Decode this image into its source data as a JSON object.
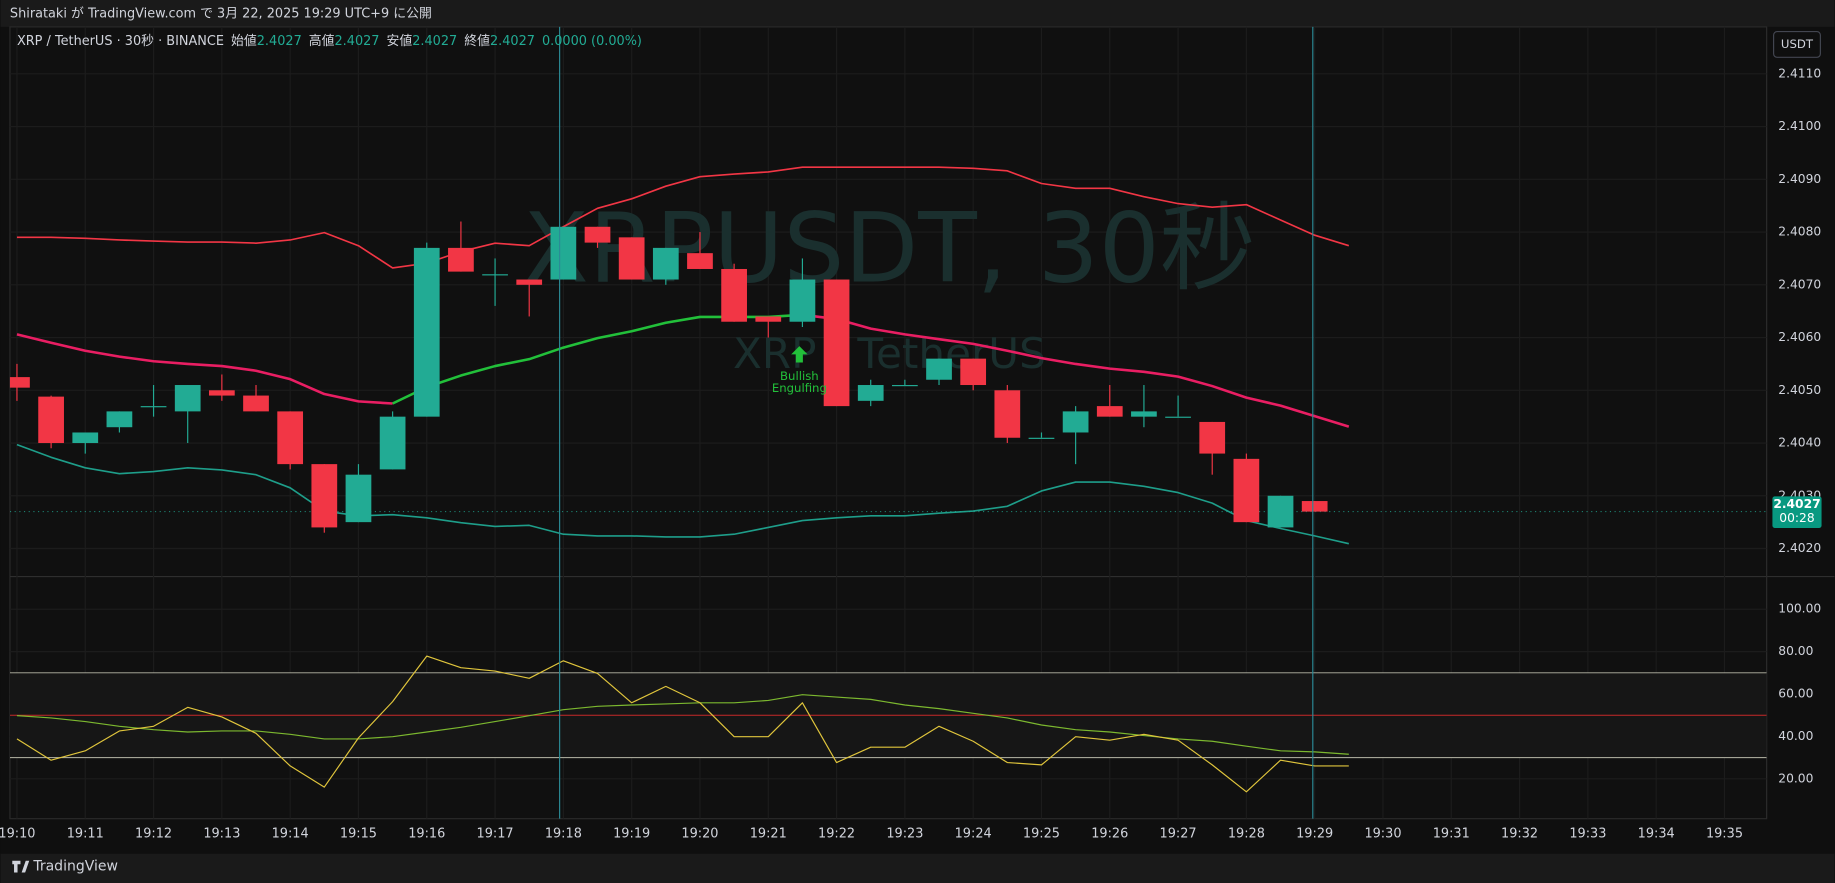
{
  "header": {
    "publish_note": "Shirataki が TradingView.com で 3月 22, 2025 19:29 UTC+9 に公開"
  },
  "footer": {
    "brand": "TradingView"
  },
  "chart_data": [
    {
      "type": "candlestick",
      "title": "XRP / TetherUS · 30秒 · BINANCE",
      "legend_fields": [
        {
          "label": "始値",
          "value": 2.4027
        },
        {
          "label": "高値",
          "value": 2.4027
        },
        {
          "label": "安値",
          "value": 2.4027
        },
        {
          "label": "終値",
          "value": 2.4027
        }
      ],
      "change": "0.0000 (0.00%)",
      "watermark": "XRPUSDT, 30秒",
      "watermark_sub": "XRP / TetherUS",
      "currency": "USDT",
      "annotation": [
        "Bullish",
        "Engulfing"
      ],
      "annotation_color": "#22c03a",
      "last_price": 2.4027,
      "countdown": "00:28",
      "categories": [
        "19:10",
        null,
        "19:11",
        null,
        "19:12",
        null,
        "19:13",
        null,
        "19:14",
        null,
        "19:15",
        null,
        "19:16",
        null,
        "19:17",
        null,
        "19:18",
        null,
        "19:19",
        null,
        "19:20",
        null,
        "19:21",
        null,
        "19:22",
        null,
        "19:23",
        null,
        "19:24",
        null,
        "19:25",
        null,
        "19:26",
        null,
        "19:27",
        null,
        "19:28",
        null,
        "19:29",
        null
      ],
      "time_axis_extra": [
        "19:30",
        "19:31",
        "19:32",
        "19:33",
        "19:34",
        "19:35"
      ],
      "open": [
        2.40525,
        2.40488,
        2.404,
        2.4043,
        2.4047,
        2.4046,
        2.405,
        2.4049,
        2.4046,
        2.4036,
        2.4025,
        2.4035,
        2.4045,
        2.4077,
        2.4072,
        2.4071,
        2.4071,
        2.4081,
        2.4079,
        2.4071,
        2.4076,
        2.4073,
        2.4064,
        2.4063,
        2.4071,
        2.4048,
        2.4051,
        2.4052,
        2.4056,
        2.405,
        2.4041,
        2.4042,
        2.4047,
        2.4045,
        2.4045,
        2.4044,
        2.4037,
        2.4024,
        2.4029,
        null
      ],
      "high": [
        2.4055,
        2.4049,
        2.4042,
        2.4046,
        2.4051,
        2.4051,
        2.4053,
        2.4051,
        2.4046,
        2.4036,
        2.4036,
        2.4046,
        2.4078,
        2.4082,
        2.4075,
        2.4071,
        2.4081,
        2.4081,
        2.4079,
        2.4077,
        2.408,
        2.4074,
        2.4064,
        2.4075,
        2.4071,
        2.4052,
        2.4052,
        2.4056,
        2.4056,
        2.4051,
        2.4042,
        2.4047,
        2.4051,
        2.4051,
        2.4049,
        2.4044,
        2.4038,
        2.403,
        2.4029,
        null
      ],
      "low": [
        2.4048,
        2.4039,
        2.4038,
        2.4042,
        2.4045,
        2.404,
        2.4048,
        2.4046,
        2.4035,
        2.4023,
        2.4025,
        2.4035,
        2.4045,
        2.40725,
        2.4066,
        2.4064,
        2.4071,
        2.4077,
        2.4071,
        2.407,
        2.4073,
        2.4063,
        2.406,
        2.4062,
        2.4047,
        2.4047,
        2.4051,
        2.4051,
        2.405,
        2.404,
        2.4041,
        2.4036,
        2.4045,
        2.4043,
        2.4045,
        2.4034,
        2.4025,
        2.4024,
        2.4027,
        null
      ],
      "close": [
        2.40505,
        2.404,
        2.4042,
        2.4046,
        2.4047,
        2.4051,
        2.4049,
        2.4046,
        2.4036,
        2.4024,
        2.4034,
        2.4045,
        2.4077,
        2.40725,
        2.4072,
        2.407,
        2.4081,
        2.4078,
        2.4071,
        2.4077,
        2.4073,
        2.4063,
        2.4063,
        2.4071,
        2.4047,
        2.4051,
        2.4051,
        2.4056,
        2.4051,
        2.4041,
        2.4041,
        2.4046,
        2.4045,
        2.4046,
        2.4045,
        2.4038,
        2.4025,
        2.403,
        2.4027,
        null
      ],
      "up_color": "#22ab94",
      "down_color": "#f23645",
      "bb_upper": {
        "color": "#f23645",
        "values": [
          2.4079,
          2.4079,
          2.40788,
          2.40785,
          2.40783,
          2.40781,
          2.40781,
          2.40779,
          2.40785,
          2.40799,
          2.40774,
          2.40732,
          2.40741,
          2.40763,
          2.40779,
          2.40774,
          2.4081,
          2.40845,
          2.40863,
          2.40887,
          2.40905,
          2.4091,
          2.40914,
          2.40923,
          2.40923,
          2.40923,
          2.40923,
          2.40923,
          2.40921,
          2.40916,
          2.40892,
          2.40883,
          2.40883,
          2.40867,
          2.40854,
          2.40847,
          2.40852,
          2.40823,
          2.40794,
          2.40774
        ]
      },
      "bb_basis": {
        "up_color": "#22c03a",
        "down_color": "#e91e63",
        "values": [
          2.40606,
          2.4059,
          2.40575,
          2.40564,
          2.40555,
          2.4055,
          2.40546,
          2.40537,
          2.40521,
          2.40493,
          2.40479,
          2.40475,
          2.40506,
          2.40528,
          2.40546,
          2.40559,
          2.40581,
          2.40599,
          2.40612,
          2.40628,
          2.40639,
          2.40639,
          2.40639,
          2.40643,
          2.40635,
          2.40617,
          2.40606,
          2.40597,
          2.40588,
          2.40575,
          2.40561,
          2.4055,
          2.40541,
          2.40535,
          2.40526,
          2.40508,
          2.40486,
          2.40471,
          2.40451,
          2.40431
        ]
      },
      "bb_lower": {
        "color": "#1e9e8a",
        "values": [
          2.40397,
          2.40373,
          2.40353,
          2.40342,
          2.40346,
          2.40353,
          2.40349,
          2.4034,
          2.40315,
          2.40271,
          2.40262,
          2.40264,
          2.40258,
          2.40249,
          2.40242,
          2.40244,
          2.40227,
          2.40224,
          2.40224,
          2.40222,
          2.40222,
          2.40227,
          2.4024,
          2.40253,
          2.40258,
          2.40262,
          2.40262,
          2.40267,
          2.40271,
          2.4028,
          2.40309,
          2.40326,
          2.40326,
          2.40318,
          2.40306,
          2.40286,
          2.40253,
          2.40238,
          2.40224,
          2.40209
        ]
      },
      "ylim": [
        2.40149,
        2.41189
      ],
      "yticks": [
        {
          "value": 2.402,
          "label": "2.4020"
        },
        {
          "value": 2.403,
          "label": "2.4030"
        },
        {
          "value": 2.404,
          "label": "2.4040"
        },
        {
          "value": 2.405,
          "label": "2.4050"
        },
        {
          "value": 2.406,
          "label": "2.4060"
        },
        {
          "value": 2.407,
          "label": "2.4070"
        },
        {
          "value": 2.408,
          "label": "2.4080"
        },
        {
          "value": 2.409,
          "label": "2.4090"
        },
        {
          "value": 2.41,
          "label": "2.4100"
        },
        {
          "value": 2.411,
          "label": "2.4110"
        }
      ],
      "grid": true
    },
    {
      "type": "line",
      "rsi": {
        "color": "#e0c53c",
        "values": [
          38.8,
          28.8,
          33.2,
          42.6,
          44.8,
          53.7,
          49.2,
          41.5,
          26.1,
          16.1,
          39.3,
          56.4,
          77.9,
          72.4,
          70.8,
          67.4,
          75.7,
          69.7,
          55.9,
          63.6,
          55.9,
          39.9,
          39.9,
          55.9,
          27.7,
          34.9,
          34.9,
          44.8,
          37.7,
          27.7,
          26.6,
          39.9,
          38.2,
          41.0,
          38.2,
          26.6,
          13.9,
          28.8,
          26.1,
          26.1
        ]
      },
      "rsi_ma": {
        "color": "#7cb82f",
        "values": [
          49.8,
          48.7,
          47.0,
          44.8,
          43.2,
          42.1,
          42.6,
          42.6,
          41.0,
          38.8,
          38.8,
          39.9,
          42.1,
          44.3,
          47.0,
          49.8,
          52.6,
          54.2,
          54.8,
          55.3,
          55.9,
          55.9,
          57.0,
          59.7,
          58.6,
          57.5,
          54.8,
          53.1,
          50.9,
          48.7,
          45.4,
          43.2,
          42.1,
          40.4,
          38.8,
          37.7,
          35.4,
          33.2,
          32.7,
          31.6
        ]
      },
      "hlines": [
        {
          "value": 70,
          "color": "#b8b8a8"
        },
        {
          "value": 50,
          "color": "#c62828"
        },
        {
          "value": 30,
          "color": "#b8b8a8"
        }
      ],
      "ylim": [
        1.2,
        114.3
      ],
      "yticks": [
        {
          "value": 20,
          "label": "20.00"
        },
        {
          "value": 40,
          "label": "40.00"
        },
        {
          "value": 60,
          "label": "60.00"
        },
        {
          "value": 80,
          "label": "80.00"
        },
        {
          "value": 100,
          "label": "100.00"
        }
      ],
      "grid": true
    }
  ]
}
